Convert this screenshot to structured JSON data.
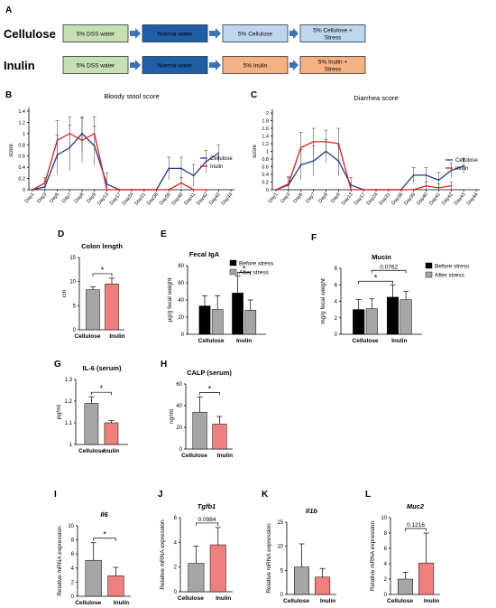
{
  "panel_letters": [
    "A",
    "B",
    "C",
    "D",
    "E",
    "F",
    "G",
    "H",
    "I",
    "J",
    "K",
    "L"
  ],
  "diagram": {
    "rows": [
      {
        "label": "Cellulose",
        "steps": [
          "5% DSS water",
          "Normal water",
          "5% Cellulose",
          "5% Cellulose +\nStress"
        ]
      },
      {
        "label": "Inulin",
        "steps": [
          "5% DSS water",
          "Normal water",
          "5% Inulin",
          "5% Inulin +\nStress"
        ]
      }
    ],
    "colors": {
      "dss": "#c6e0b4",
      "normal": "#1f5fa8",
      "cellulose": "#bdd7ee",
      "inulin": "#f4b183",
      "arrow": "#3a73b8"
    }
  },
  "legend_cellulose": "Cellulose",
  "legend_inulin": "Inulin",
  "legend_before": "Before stress",
  "legend_after": "After stress",
  "colors": {
    "cellulose_line": "#1f3a8a",
    "inulin_line": "#e02020",
    "bar_grey": "#a6a6a6",
    "bar_pink": "#f08080",
    "bar_black": "#000000"
  },
  "chart_data": [
    {
      "id": "B",
      "type": "line",
      "title": "Bloody stool score",
      "ylabel": "score",
      "ylim": [
        0,
        1.4
      ],
      "yticks": [
        "0",
        "0.2",
        "0.4",
        "0.6",
        "0.8",
        "1",
        "1.2",
        "1.4"
      ],
      "categories": [
        "Day1",
        "Day3",
        "Day6",
        "Day7",
        "Day8",
        "Day9",
        "Day13",
        "Day17",
        "Day24",
        "Day31",
        "Day38",
        "Day39",
        "Day40",
        "Day41",
        "Day42",
        "Day43",
        "Day44"
      ],
      "series": [
        {
          "name": "Cellulose",
          "values": [
            0,
            0.05,
            0.62,
            0.75,
            1.0,
            0.78,
            0.1,
            0,
            0,
            0,
            0,
            0.38,
            0.38,
            0.25,
            0.5,
            0.65,
            null
          ],
          "err": [
            0,
            0.1,
            0.35,
            0.4,
            0.3,
            0.35,
            0.2,
            0,
            0,
            0,
            0,
            0.2,
            0.2,
            0.2,
            0.2,
            0.15,
            null
          ]
        },
        {
          "name": "Inulin",
          "values": [
            0,
            0.12,
            0.88,
            1.0,
            0.88,
            1.0,
            0,
            0,
            0,
            0,
            0,
            0,
            0.12,
            0,
            0,
            null,
            null
          ],
          "err": [
            0,
            0.1,
            0.35,
            0.3,
            0.4,
            0.3,
            0,
            0,
            0,
            0,
            0,
            0,
            0.1,
            0,
            0,
            null,
            null
          ]
        }
      ]
    },
    {
      "id": "C",
      "type": "line",
      "title": "Diarrhea score",
      "ylabel": "score",
      "ylim": [
        0,
        2
      ],
      "yticks": [
        "0",
        "0.2",
        "0.4",
        "0.6",
        "0.8",
        "1",
        "1.2",
        "1.4",
        "1.6",
        "1.8",
        "2"
      ],
      "categories": [
        "Day1",
        "Day3",
        "Day6",
        "Day7",
        "Day8",
        "Day9",
        "Day13",
        "Day17",
        "Day24",
        "Day31",
        "Day38",
        "Day39",
        "Day40",
        "Day41",
        "Day42",
        "Day43",
        "Day44"
      ],
      "series": [
        {
          "name": "Cellulose",
          "values": [
            0,
            0.12,
            0.65,
            0.75,
            1.0,
            0.75,
            0.12,
            0,
            0,
            0,
            0,
            0.38,
            0.38,
            0.25,
            0.5,
            0.62,
            null
          ],
          "err": [
            0,
            0.2,
            0.4,
            0.4,
            0.3,
            0.4,
            0.2,
            0,
            0,
            0,
            0,
            0.2,
            0.2,
            0.2,
            0.2,
            0.2,
            null
          ]
        },
        {
          "name": "Inulin",
          "values": [
            0,
            0.15,
            1.1,
            1.25,
            1.25,
            1.2,
            0,
            0,
            0,
            0,
            0,
            0,
            0.1,
            0.05,
            0.1,
            null,
            null
          ],
          "err": [
            0,
            0.2,
            0.4,
            0.35,
            0.3,
            0.4,
            0,
            0,
            0,
            0,
            0,
            0,
            0.1,
            0.1,
            0.1,
            null,
            null
          ]
        }
      ]
    },
    {
      "id": "D",
      "type": "bar",
      "title": "Colon length",
      "ylabel": "cm",
      "ylim": [
        0,
        15
      ],
      "yticks": [
        "0",
        "5",
        "10",
        "15"
      ],
      "categories": [
        "Cellulose",
        "Inulin"
      ],
      "values": [
        8.3,
        9.5
      ],
      "err": [
        0.6,
        1.2
      ],
      "colors": [
        "#a6a6a6",
        "#f08080"
      ],
      "sig": "*"
    },
    {
      "id": "E",
      "type": "bar",
      "title": "Fecal IgA",
      "ylabel": "μg/g fecal weight",
      "ylim": [
        0,
        80
      ],
      "yticks": [
        "0",
        "20",
        "40",
        "60",
        "80"
      ],
      "categories": [
        "Cellulose",
        "Inulin"
      ],
      "series": [
        {
          "name": "Before stress",
          "values": [
            33,
            48
          ],
          "err": [
            12,
            20
          ]
        },
        {
          "name": "After stress",
          "values": [
            29,
            28
          ],
          "err": [
            16,
            12
          ]
        }
      ],
      "sig": "*"
    },
    {
      "id": "F",
      "type": "bar",
      "title": "Mucin",
      "ylabel": "mg/g fecal weight",
      "ylim": [
        0,
        8
      ],
      "yticks": [
        "0",
        "2",
        "4",
        "6",
        "8"
      ],
      "categories": [
        "Cellulose",
        "Inulin"
      ],
      "series": [
        {
          "name": "Before stress",
          "values": [
            3.0,
            4.5
          ],
          "err": [
            1.2,
            1.5
          ]
        },
        {
          "name": "After stress",
          "values": [
            3.1,
            4.2
          ],
          "err": [
            1.2,
            1.0
          ]
        }
      ],
      "sig": "*",
      "p_label": "0.0762"
    },
    {
      "id": "G",
      "type": "bar",
      "title": "IL-6 (serum)",
      "ylabel": "pg/ml",
      "ylim": [
        1,
        1.3
      ],
      "yticks": [
        "1",
        "1.1",
        "1.2",
        "1.3"
      ],
      "categories": [
        "Cellulose",
        "Inulin"
      ],
      "values": [
        1.19,
        1.1
      ],
      "err": [
        0.03,
        0.01
      ],
      "colors": [
        "#a6a6a6",
        "#f08080"
      ],
      "sig": "*"
    },
    {
      "id": "H",
      "type": "bar",
      "title": "CALP (serum)",
      "ylabel": "ng/ml",
      "ylim": [
        0,
        60
      ],
      "yticks": [
        "0",
        "20",
        "40",
        "60"
      ],
      "categories": [
        "Cellulose",
        "Inulin"
      ],
      "values": [
        34,
        23
      ],
      "err": [
        14,
        7
      ],
      "colors": [
        "#a6a6a6",
        "#f08080"
      ],
      "sig": "*"
    },
    {
      "id": "I",
      "type": "bar",
      "title": "Il6",
      "ylabel": "Relative mRNA expression",
      "ylim": [
        0,
        10
      ],
      "yticks": [
        "0",
        "2",
        "4",
        "6",
        "8",
        "10"
      ],
      "categories": [
        "Cellulose",
        "Inulin"
      ],
      "values": [
        5.1,
        2.9
      ],
      "err": [
        2.5,
        1.2
      ],
      "colors": [
        "#a6a6a6",
        "#f08080"
      ],
      "sig": "*"
    },
    {
      "id": "J",
      "type": "bar",
      "title": "Tgfb1",
      "ylabel": "Relative mRNA expression",
      "ylim": [
        0,
        6
      ],
      "yticks": [
        "0",
        "2",
        "4",
        "6"
      ],
      "categories": [
        "Cellulose",
        "Inulin"
      ],
      "values": [
        2.3,
        3.8
      ],
      "err": [
        1.4,
        1.4
      ],
      "colors": [
        "#a6a6a6",
        "#f08080"
      ],
      "p_label": "0.0984"
    },
    {
      "id": "K",
      "type": "bar",
      "title": "Il1b",
      "ylabel": "Relative mRNA expression",
      "ylim": [
        0,
        15
      ],
      "yticks": [
        "0",
        "5",
        "10",
        "15"
      ],
      "categories": [
        "Cellulose",
        "Inulin"
      ],
      "values": [
        5.7,
        3.6
      ],
      "err": [
        4.8,
        1.8
      ],
      "colors": [
        "#a6a6a6",
        "#f08080"
      ]
    },
    {
      "id": "L",
      "type": "bar",
      "title": "Muc2",
      "ylabel": "Relative mRNA expression",
      "ylim": [
        0,
        10
      ],
      "yticks": [
        "0",
        "2",
        "4",
        "6",
        "8",
        "10"
      ],
      "categories": [
        "Cellulose",
        "Inulin"
      ],
      "values": [
        2.0,
        4.1
      ],
      "err": [
        0.9,
        3.9
      ],
      "colors": [
        "#a6a6a6",
        "#f08080"
      ],
      "p_label": "0.1216"
    }
  ]
}
